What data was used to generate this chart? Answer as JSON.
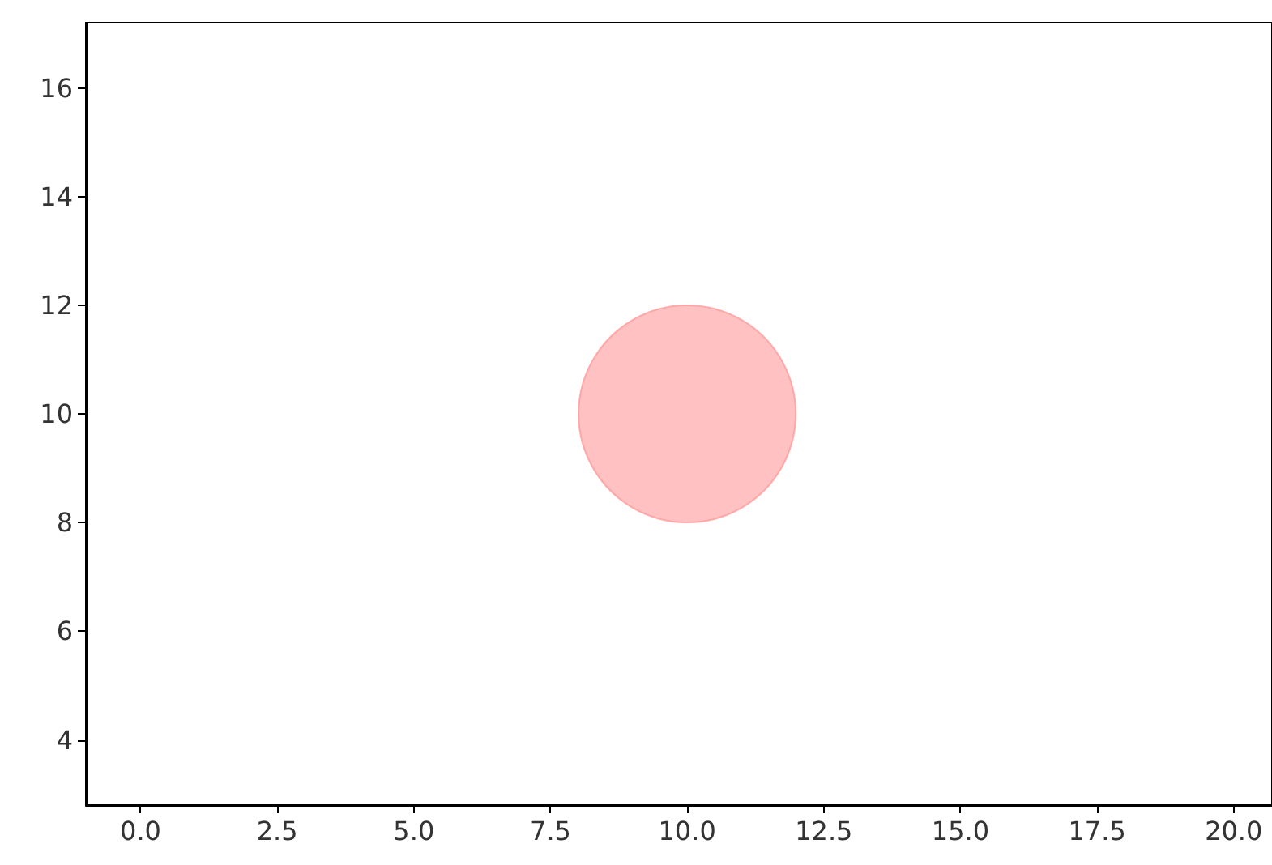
{
  "chart_data": {
    "type": "bubble",
    "x": [
      10
    ],
    "values": [
      10
    ],
    "sizes": [
      1
    ],
    "color": "#ffb2b2",
    "xlim": [
      -1,
      20.7
    ],
    "ylim": [
      2.8,
      17.2
    ],
    "xticks": [
      {
        "value": 0,
        "label": "0.0"
      },
      {
        "value": 2.5,
        "label": "2.5"
      },
      {
        "value": 5,
        "label": "5.0"
      },
      {
        "value": 7.5,
        "label": "7.5"
      },
      {
        "value": 10,
        "label": "10.0"
      },
      {
        "value": 12.5,
        "label": "12.5"
      },
      {
        "value": 15,
        "label": "15.0"
      },
      {
        "value": 17.5,
        "label": "17.5"
      },
      {
        "value": 20,
        "label": "20.0"
      }
    ],
    "yticks": [
      4,
      6,
      8,
      10,
      12,
      14,
      16
    ],
    "grid": false
  }
}
